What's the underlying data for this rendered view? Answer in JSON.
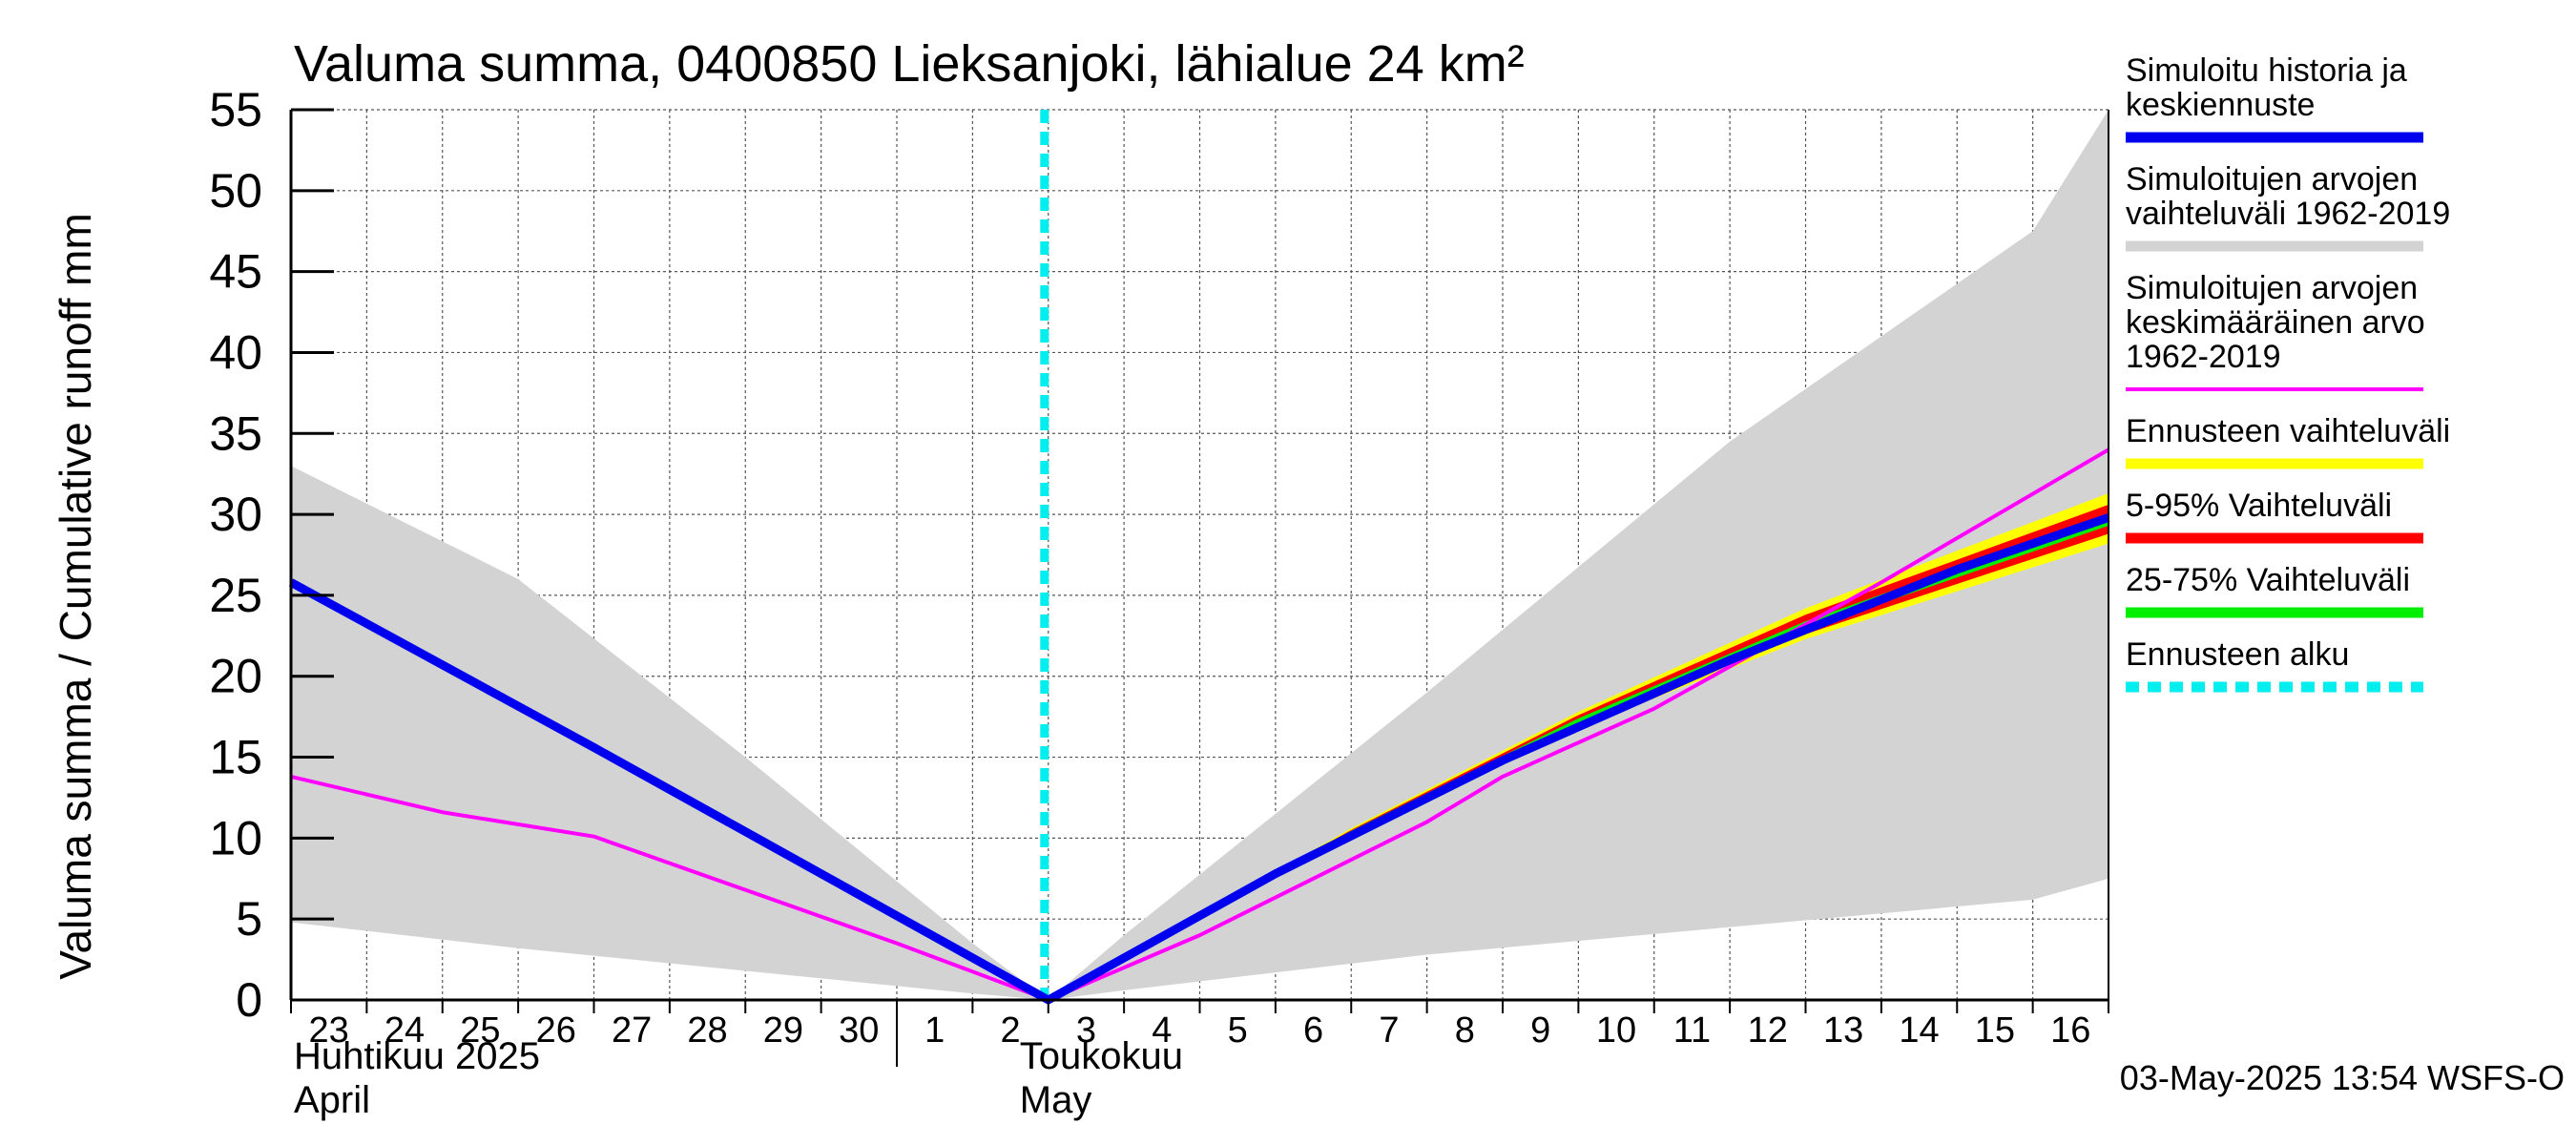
{
  "chart_data": {
    "type": "area",
    "title": "Valuma summa, 0400850 Lieksanjoki, lähialue 24 km²",
    "ylabel": "Valuma summa / Cumulative runoff    mm",
    "ylim": [
      0,
      55
    ],
    "yticks": [
      0,
      5,
      10,
      15,
      20,
      25,
      30,
      35,
      40,
      45,
      50,
      55
    ],
    "grid": true,
    "legend_position": "right",
    "x_start": "2025-04-23",
    "x_end": "2025-05-17",
    "x_tick_labels": [
      "23",
      "24",
      "25",
      "26",
      "27",
      "28",
      "29",
      "30",
      "1",
      "2",
      "3",
      "4",
      "5",
      "6",
      "7",
      "8",
      "9",
      "10",
      "11",
      "12",
      "13",
      "14",
      "15",
      "16"
    ],
    "month_labels": [
      {
        "fi": "Huhtikuu  2025",
        "en": "April"
      },
      {
        "fi": "Toukokuu",
        "en": "May"
      }
    ],
    "forecast_start": "2025-05-03",
    "footer": "03-May-2025 13:54 WSFS-O",
    "colors": {
      "history": "#0000ee",
      "range": "#d3d3d3",
      "mean": "#ff00ff",
      "forecast_range": "#ffff00",
      "p5_95": "#ff0000",
      "p25_75": "#00ee00",
      "forecast_start": "#00eeee"
    },
    "series": [
      {
        "name": "Simuloitujen arvojen vaihteluväli 1962-2019",
        "kind": "band",
        "x": [
          "2025-04-23",
          "2025-04-26",
          "2025-04-29",
          "2025-05-02",
          "2025-05-03",
          "2025-05-04",
          "2025-05-08",
          "2025-05-12",
          "2025-05-16",
          "2025-05-17"
        ],
        "upper": [
          33.0,
          26.0,
          15.0,
          3.5,
          0.0,
          4.0,
          19.0,
          34.5,
          47.5,
          55.0
        ],
        "lower": [
          4.8,
          3.2,
          1.8,
          0.4,
          0.0,
          0.6,
          2.8,
          4.5,
          6.2,
          7.5
        ]
      },
      {
        "name": "Ennusteen vaihteluväli",
        "kind": "band",
        "x": [
          "2025-05-03",
          "2025-05-07",
          "2025-05-10",
          "2025-05-13",
          "2025-05-17"
        ],
        "upper": [
          0.0,
          10.6,
          17.8,
          24.2,
          31.3
        ],
        "lower": [
          0.0,
          10.2,
          16.8,
          22.3,
          28.2
        ]
      },
      {
        "name": "5-95% Vaihteluväli",
        "kind": "band",
        "x": [
          "2025-05-03",
          "2025-05-07",
          "2025-05-10",
          "2025-05-13",
          "2025-05-17"
        ],
        "upper": [
          0.0,
          10.5,
          17.6,
          23.8,
          30.6
        ],
        "lower": [
          0.0,
          10.3,
          17.0,
          22.6,
          28.8
        ]
      },
      {
        "name": "25-75% Vaihteluväli",
        "kind": "band",
        "x": [
          "2025-05-03",
          "2025-05-07",
          "2025-05-10",
          "2025-05-13",
          "2025-05-17"
        ],
        "upper": [
          0.0,
          10.45,
          17.4,
          23.4,
          30.0
        ],
        "lower": [
          0.0,
          10.35,
          17.1,
          22.9,
          29.3
        ]
      },
      {
        "name": "Simuloitujen arvojen keskimääräinen arvo 1962-2019",
        "kind": "line",
        "x": [
          "2025-04-23",
          "2025-04-25",
          "2025-04-27",
          "2025-04-29",
          "2025-05-01",
          "2025-05-03",
          "2025-05-05",
          "2025-05-08",
          "2025-05-09",
          "2025-05-11",
          "2025-05-14",
          "2025-05-17"
        ],
        "values": [
          13.8,
          11.6,
          10.1,
          6.8,
          3.5,
          0.0,
          4.0,
          11.0,
          13.8,
          18.0,
          25.8,
          34.0
        ]
      },
      {
        "name": "Simuloitu historia ja keskiennuste",
        "kind": "line",
        "x": [
          "2025-04-23",
          "2025-04-27",
          "2025-05-01",
          "2025-05-03",
          "2025-05-06",
          "2025-05-09",
          "2025-05-12",
          "2025-05-15",
          "2025-05-17"
        ],
        "values": [
          25.8,
          15.6,
          5.2,
          0.0,
          7.8,
          14.8,
          21.0,
          26.6,
          29.8
        ]
      }
    ],
    "legend": [
      {
        "lines": [
          "Simuloitu historia ja",
          "keskiennuste"
        ],
        "color": "#0000ee",
        "style": "solid"
      },
      {
        "lines": [
          "Simuloitujen arvojen",
          "vaihteluväli 1962-2019"
        ],
        "color": "#d3d3d3",
        "style": "solid"
      },
      {
        "lines": [
          "Simuloitujen arvojen",
          "keskimääräinen arvo",
          "   1962-2019"
        ],
        "color": "#ff00ff",
        "style": "thin"
      },
      {
        "lines": [
          "Ennusteen vaihteluväli"
        ],
        "color": "#ffff00",
        "style": "solid"
      },
      {
        "lines": [
          "5-95% Vaihteluväli"
        ],
        "color": "#ff0000",
        "style": "solid"
      },
      {
        "lines": [
          "25-75% Vaihteluväli"
        ],
        "color": "#00ee00",
        "style": "solid"
      },
      {
        "lines": [
          "Ennusteen alku"
        ],
        "color": "#00eeee",
        "style": "dashed"
      }
    ]
  }
}
